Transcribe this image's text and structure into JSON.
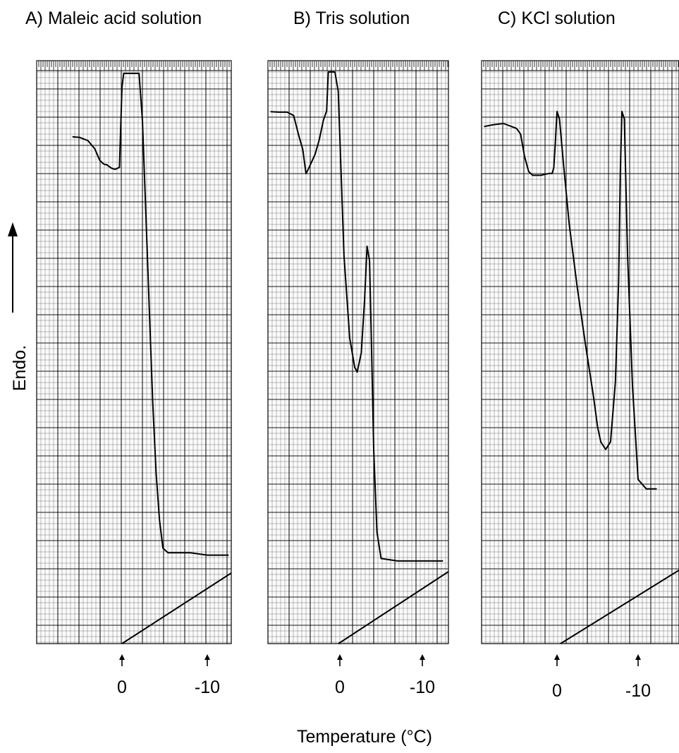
{
  "chart_data": [
    {
      "type": "line",
      "title": "A) Maleic acid solution",
      "xticks": [
        "0",
        "-10"
      ],
      "series": [
        {
          "x": [
            5.8,
            5.0,
            4.0,
            3.2,
            2.6,
            2.2,
            2.0,
            1.8,
            1.6,
            1.2,
            0.8,
            0.3,
            0.0,
            -0.2,
            -0.4,
            -0.6,
            -1.0,
            -1.4,
            -2.0,
            -2.4,
            -2.8,
            -3.2,
            -3.6,
            -4.0,
            -4.4,
            -4.8,
            -5.4,
            -6.5,
            -8.0,
            -10.0,
            -12.5
          ],
          "y": [
            0.865,
            0.864,
            0.857,
            0.84,
            0.815,
            0.808,
            0.806,
            0.806,
            0.803,
            0.798,
            0.796,
            0.8,
            0.97,
            1.0,
            1.0,
            1.0,
            1.0,
            1.0,
            1.0,
            0.9,
            0.7,
            0.5,
            0.3,
            0.15,
            0.05,
            -0.01,
            -0.02,
            -0.02,
            -0.02,
            -0.025,
            -0.025
          ]
        }
      ]
    },
    {
      "type": "line",
      "title": "B) Tris solution",
      "xticks": [
        "0",
        "-10"
      ],
      "series": [
        {
          "x": [
            8.4,
            7.4,
            6.4,
            5.6,
            5.0,
            4.5,
            4.1,
            3.8,
            3.0,
            2.5,
            2.0,
            1.6,
            1.5,
            1.4,
            1.0,
            0.6,
            0.2,
            -0.5,
            -1.2,
            -1.8,
            -2.1,
            -2.6,
            -3.0,
            -3.3,
            -3.6,
            -3.8,
            -4.1,
            -4.5,
            -5.0,
            -7.0,
            -10.0,
            -12.5
          ],
          "y": [
            0.918,
            0.917,
            0.917,
            0.91,
            0.87,
            0.84,
            0.79,
            0.8,
            0.83,
            0.86,
            0.9,
            0.92,
            0.96,
            1.0,
            1.0,
            1.0,
            0.96,
            0.62,
            0.45,
            0.39,
            0.38,
            0.42,
            0.53,
            0.64,
            0.61,
            0.46,
            0.22,
            0.05,
            -0.005,
            -0.01,
            -0.01,
            -0.01
          ]
        }
      ]
    },
    {
      "type": "line",
      "title": "C) KCl solution",
      "xticks": [
        "0",
        "-10"
      ],
      "series": [
        {
          "x": [
            9.0,
            7.8,
            6.6,
            5.0,
            4.5,
            4.0,
            3.5,
            3.0,
            2.0,
            1.0,
            0.6,
            0.4,
            0.2,
            0.0,
            -0.3,
            -0.8,
            -1.5,
            -2.5,
            -3.5,
            -4.5,
            -5.0,
            -5.4,
            -6.0,
            -6.6,
            -7.2,
            -7.6,
            -7.8,
            -8.0,
            -8.3,
            -8.7,
            -9.3,
            -10.0,
            -11.0,
            -12.3
          ],
          "y": [
            0.96,
            0.965,
            0.968,
            0.955,
            0.94,
            0.88,
            0.84,
            0.83,
            0.83,
            0.835,
            0.835,
            0.85,
            0.92,
            1.0,
            0.98,
            0.86,
            0.7,
            0.53,
            0.38,
            0.24,
            0.16,
            0.12,
            0.1,
            0.12,
            0.28,
            0.55,
            0.83,
            1.0,
            0.98,
            0.62,
            0.27,
            0.02,
            -0.005,
            -0.005
          ]
        }
      ]
    }
  ],
  "labels": {
    "ylabel": "Endo.",
    "xlabel": "Temperature (°C)"
  }
}
